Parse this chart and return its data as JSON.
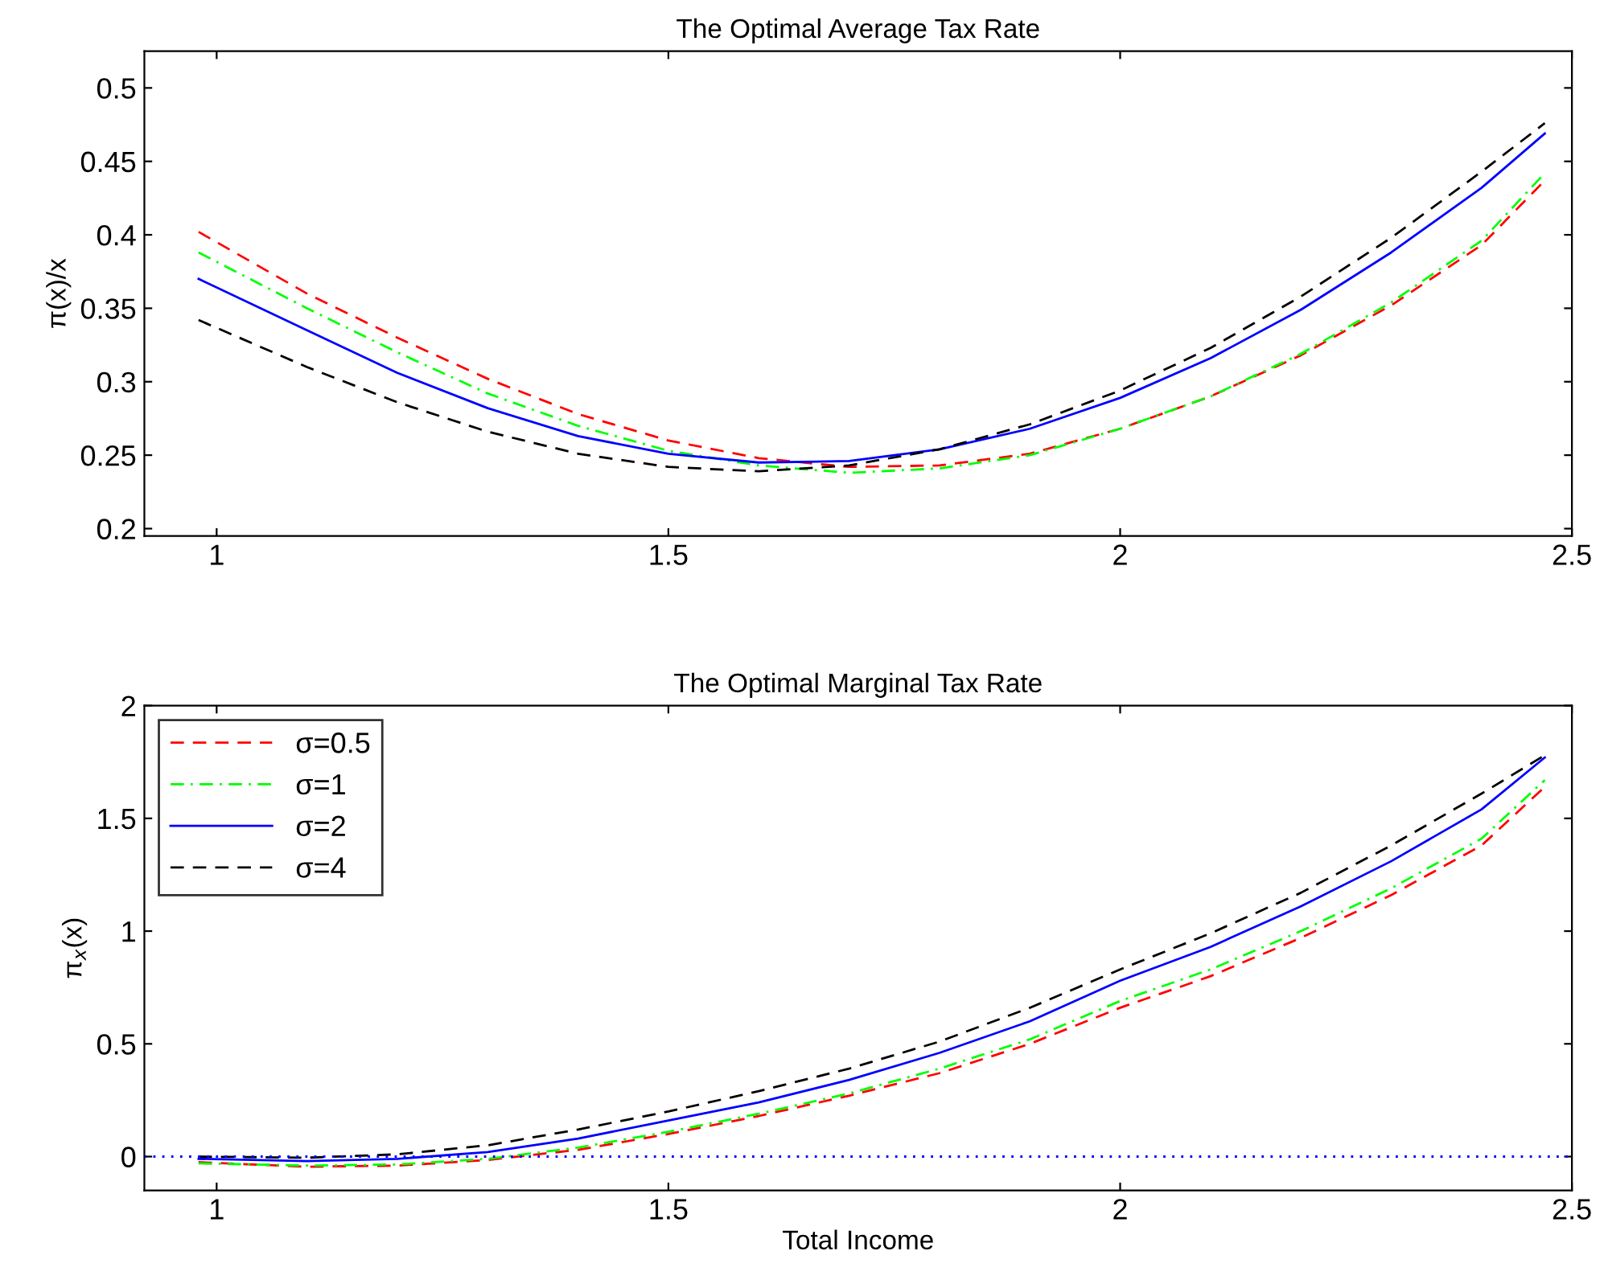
{
  "chart_data": [
    {
      "type": "line",
      "title": "The Optimal Average Tax Rate",
      "ylabel": "π(x)/x",
      "xlim": [
        0.92,
        2.5
      ],
      "ylim": [
        0.195,
        0.525
      ],
      "xticks": [
        1,
        1.5,
        2,
        2.5
      ],
      "yticks": [
        0.2,
        0.25,
        0.3,
        0.35,
        0.4,
        0.45,
        0.5
      ],
      "grid": false,
      "legend": false,
      "x": [
        0.98,
        1.1,
        1.2,
        1.3,
        1.4,
        1.5,
        1.6,
        1.7,
        1.8,
        1.9,
        2.0,
        2.1,
        2.2,
        2.3,
        2.4,
        2.47
      ],
      "series": [
        {
          "color": "#ff0000",
          "line_style": "dashed",
          "values": [
            0.402,
            0.36,
            0.33,
            0.302,
            0.278,
            0.26,
            0.248,
            0.242,
            0.243,
            0.251,
            0.268,
            0.29,
            0.318,
            0.352,
            0.393,
            0.437
          ]
        },
        {
          "color": "#00ff00",
          "line_style": "dashdot",
          "values": [
            0.388,
            0.35,
            0.32,
            0.292,
            0.27,
            0.253,
            0.243,
            0.238,
            0.241,
            0.25,
            0.268,
            0.29,
            0.319,
            0.354,
            0.396,
            0.442
          ]
        },
        {
          "color": "#0000ff",
          "line_style": "solid",
          "values": [
            0.37,
            0.335,
            0.306,
            0.282,
            0.263,
            0.251,
            0.245,
            0.246,
            0.254,
            0.268,
            0.289,
            0.316,
            0.349,
            0.388,
            0.432,
            0.469
          ]
        },
        {
          "color": "#000000",
          "line_style": "dashed",
          "values": [
            0.342,
            0.31,
            0.286,
            0.266,
            0.251,
            0.242,
            0.239,
            0.243,
            0.254,
            0.271,
            0.294,
            0.323,
            0.358,
            0.398,
            0.443,
            0.476
          ]
        }
      ]
    },
    {
      "type": "line",
      "title": "The Optimal Marginal Tax Rate",
      "xlabel": "Total Income",
      "ylabel": "π$_{x}$(x)",
      "xlim": [
        0.92,
        2.5
      ],
      "ylim": [
        -0.15,
        2
      ],
      "xticks": [
        1,
        1.5,
        2,
        2.5
      ],
      "yticks": [
        0,
        0.5,
        1,
        1.5,
        2
      ],
      "grid": false,
      "legend": "top left",
      "x": [
        0.98,
        1.1,
        1.2,
        1.3,
        1.4,
        1.5,
        1.6,
        1.7,
        1.8,
        1.9,
        2.0,
        2.1,
        2.2,
        2.3,
        2.4,
        2.47
      ],
      "ref_lines": [
        {
          "axis": "y",
          "value": 0,
          "color": "#0000ff",
          "line_style": "dotted"
        }
      ],
      "series": [
        {
          "name": "σ=0.5",
          "color": "#ff0000",
          "line_style": "dashed",
          "values": [
            -0.025,
            -0.045,
            -0.04,
            -0.015,
            0.03,
            0.1,
            0.18,
            0.27,
            0.37,
            0.5,
            0.66,
            0.8,
            0.97,
            1.16,
            1.38,
            1.64
          ]
        },
        {
          "name": "σ=1",
          "color": "#00ff00",
          "line_style": "dashdot",
          "values": [
            -0.03,
            -0.04,
            -0.035,
            -0.01,
            0.04,
            0.11,
            0.19,
            0.28,
            0.39,
            0.52,
            0.69,
            0.83,
            1.0,
            1.19,
            1.41,
            1.67
          ]
        },
        {
          "name": "σ=2",
          "color": "#0000ff",
          "line_style": "solid",
          "values": [
            -0.01,
            -0.02,
            -0.01,
            0.02,
            0.08,
            0.16,
            0.24,
            0.34,
            0.46,
            0.6,
            0.78,
            0.93,
            1.11,
            1.31,
            1.54,
            1.77
          ]
        },
        {
          "name": "σ=4",
          "color": "#000000",
          "line_style": "dashed",
          "values": [
            0.0,
            -0.005,
            0.01,
            0.05,
            0.12,
            0.2,
            0.29,
            0.39,
            0.51,
            0.66,
            0.83,
            0.99,
            1.17,
            1.38,
            1.61,
            1.78
          ]
        }
      ]
    }
  ]
}
